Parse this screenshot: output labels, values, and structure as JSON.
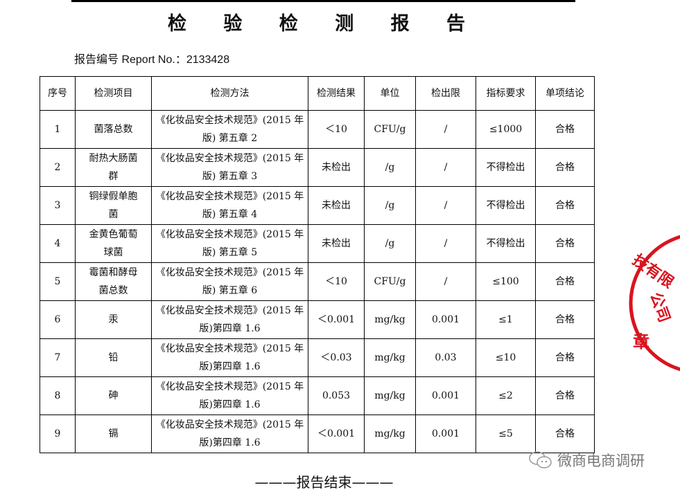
{
  "title": "检 验 检 测 报 告",
  "report_no": "报告编号 Report No.：2133428",
  "table": {
    "headers": [
      "序号",
      "检测项目",
      "检测方法",
      "检测结果",
      "单位",
      "检出限",
      "指标要求",
      "单项结论"
    ],
    "rows": [
      [
        "1",
        "菌落总数",
        "《化妆品安全技术规范》(2015 年版) 第五章 2",
        "＜10",
        "CFU/g",
        "/",
        "≤1000",
        "合格"
      ],
      [
        "2",
        "耐热大肠菌群",
        "《化妆品安全技术规范》(2015 年版) 第五章 3",
        "未检出",
        "/g",
        "/",
        "不得检出",
        "合格"
      ],
      [
        "3",
        "铜绿假单胞菌",
        "《化妆品安全技术规范》(2015 年版) 第五章 4",
        "未检出",
        "/g",
        "/",
        "不得检出",
        "合格"
      ],
      [
        "4",
        "金黄色葡萄球菌",
        "《化妆品安全技术规范》(2015 年版) 第五章 5",
        "未检出",
        "/g",
        "/",
        "不得检出",
        "合格"
      ],
      [
        "5",
        "霉菌和酵母菌总数",
        "《化妆品安全技术规范》(2015 年版) 第五章 6",
        "＜10",
        "CFU/g",
        "/",
        "≤100",
        "合格"
      ],
      [
        "6",
        "汞",
        "《化妆品安全技术规范》(2015 年版)第四章 1.6",
        "＜0.001",
        "mg/kg",
        "0.001",
        "≤1",
        "合格"
      ],
      [
        "7",
        "铅",
        "《化妆品安全技术规范》(2015 年版)第四章 1.6",
        "＜0.03",
        "mg/kg",
        "0.03",
        "≤10",
        "合格"
      ],
      [
        "8",
        "砷",
        "《化妆品安全技术规范》(2015 年版)第四章 1.6",
        "0.053",
        "mg/kg",
        "0.001",
        "≤2",
        "合格"
      ],
      [
        "9",
        "镉",
        "《化妆品安全技术规范》(2015 年版)第四章 1.6",
        "＜0.001",
        "mg/kg",
        "0.001",
        "≤5",
        "合格"
      ]
    ]
  },
  "stamp": {
    "text": "技有限公司",
    "text2": "章",
    "color": "#d9141f"
  },
  "watermark": {
    "icon": "wechat-icon",
    "text": "微商电商调研"
  },
  "end_text": "———报告结束———"
}
